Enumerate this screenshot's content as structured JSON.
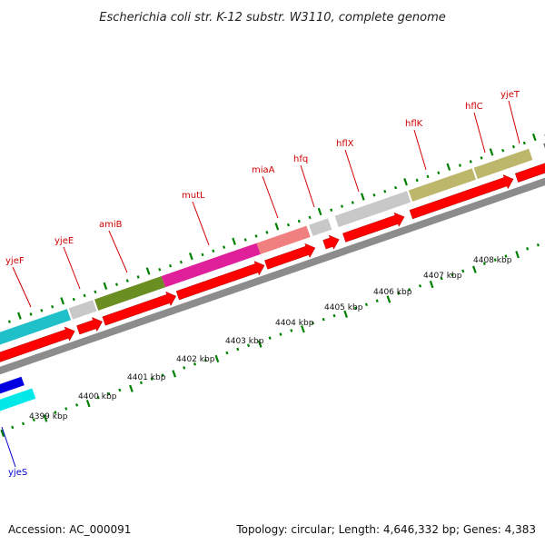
{
  "title": "Escherichia coli str. K-12 substr. W3110, complete genome",
  "footer": {
    "accession": "Accession: AC_000091",
    "summary": "Topology: circular; Length: 4,646,332 bp; Genes: 4,383"
  },
  "colors": {
    "forward_label": "#d00000",
    "reverse_label": "#0000cc",
    "cds": "#ff0000",
    "backbone": "#8c8c8c",
    "tick": "#008000"
  },
  "genes": [
    {
      "name": "yjeF",
      "strand": "forward",
      "color": "#20c0c8"
    },
    {
      "name": "yjeE",
      "strand": "forward",
      "color": "#c8c8c8"
    },
    {
      "name": "amiB",
      "strand": "forward",
      "color": "#6b8e23"
    },
    {
      "name": "mutL",
      "strand": "forward",
      "color": "#e0209a"
    },
    {
      "name": "miaA",
      "strand": "forward",
      "color": "#f08080"
    },
    {
      "name": "hfq",
      "strand": "forward",
      "color": "#c8c8c8"
    },
    {
      "name": "hflX",
      "strand": "forward",
      "color": "#c8c8c8"
    },
    {
      "name": "hflK",
      "strand": "forward",
      "color": "#bdb76b"
    },
    {
      "name": "hflC",
      "strand": "forward",
      "color": "#bdb76b"
    },
    {
      "name": "yjeT",
      "strand": "forward",
      "color": "#707070"
    },
    {
      "name": "yjeS",
      "strand": "reverse",
      "color": "#0000e0"
    }
  ],
  "ruler_labels": [
    "4399 kbp",
    "4400 kbp",
    "4401 kbp",
    "4402 kbp",
    "4403 kbp",
    "4404 kbp",
    "4405 kbp",
    "4406 kbp",
    "4407 kbp",
    "4408 kbp"
  ]
}
